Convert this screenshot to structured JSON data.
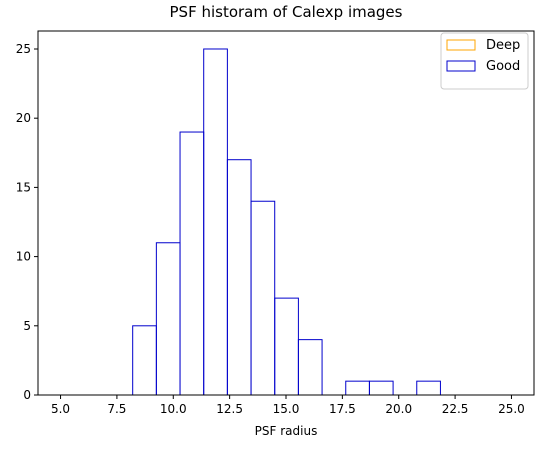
{
  "chart_data": {
    "type": "bar",
    "title": "PSF historam of Calexp images",
    "xlabel": "PSF radius",
    "ylabel": "",
    "xlim": [
      4.0,
      26.0
    ],
    "ylim": [
      0,
      26.3
    ],
    "x_ticks": [
      5.0,
      7.5,
      10.0,
      12.5,
      15.0,
      17.5,
      20.0,
      22.5,
      25.0
    ],
    "x_tick_labels": [
      "5.0",
      "7.5",
      "10.0",
      "12.5",
      "15.0",
      "17.5",
      "20.0",
      "22.5",
      "25.0"
    ],
    "y_ticks": [
      0,
      5,
      10,
      15,
      20,
      25
    ],
    "y_tick_labels": [
      "0",
      "5",
      "10",
      "15",
      "20",
      "25"
    ],
    "grid": false,
    "legend_position": "top-right",
    "series": [
      {
        "name": "Deep",
        "color": "#ffa500",
        "bins": []
      },
      {
        "name": "Good",
        "color": "#0000cc",
        "bins": [
          {
            "x0": 8.2,
            "x1": 9.25,
            "value": 5
          },
          {
            "x0": 9.25,
            "x1": 10.3,
            "value": 11
          },
          {
            "x0": 10.3,
            "x1": 11.35,
            "value": 19
          },
          {
            "x0": 11.35,
            "x1": 12.4,
            "value": 25
          },
          {
            "x0": 12.4,
            "x1": 13.45,
            "value": 17
          },
          {
            "x0": 13.45,
            "x1": 14.5,
            "value": 14
          },
          {
            "x0": 14.5,
            "x1": 15.55,
            "value": 7
          },
          {
            "x0": 15.55,
            "x1": 16.6,
            "value": 4
          },
          {
            "x0": 16.6,
            "x1": 17.65,
            "value": 0
          },
          {
            "x0": 17.65,
            "x1": 18.7,
            "value": 1
          },
          {
            "x0": 18.7,
            "x1": 19.75,
            "value": 1
          },
          {
            "x0": 19.75,
            "x1": 20.8,
            "value": 0
          },
          {
            "x0": 20.8,
            "x1": 21.85,
            "value": 1
          }
        ]
      }
    ]
  }
}
